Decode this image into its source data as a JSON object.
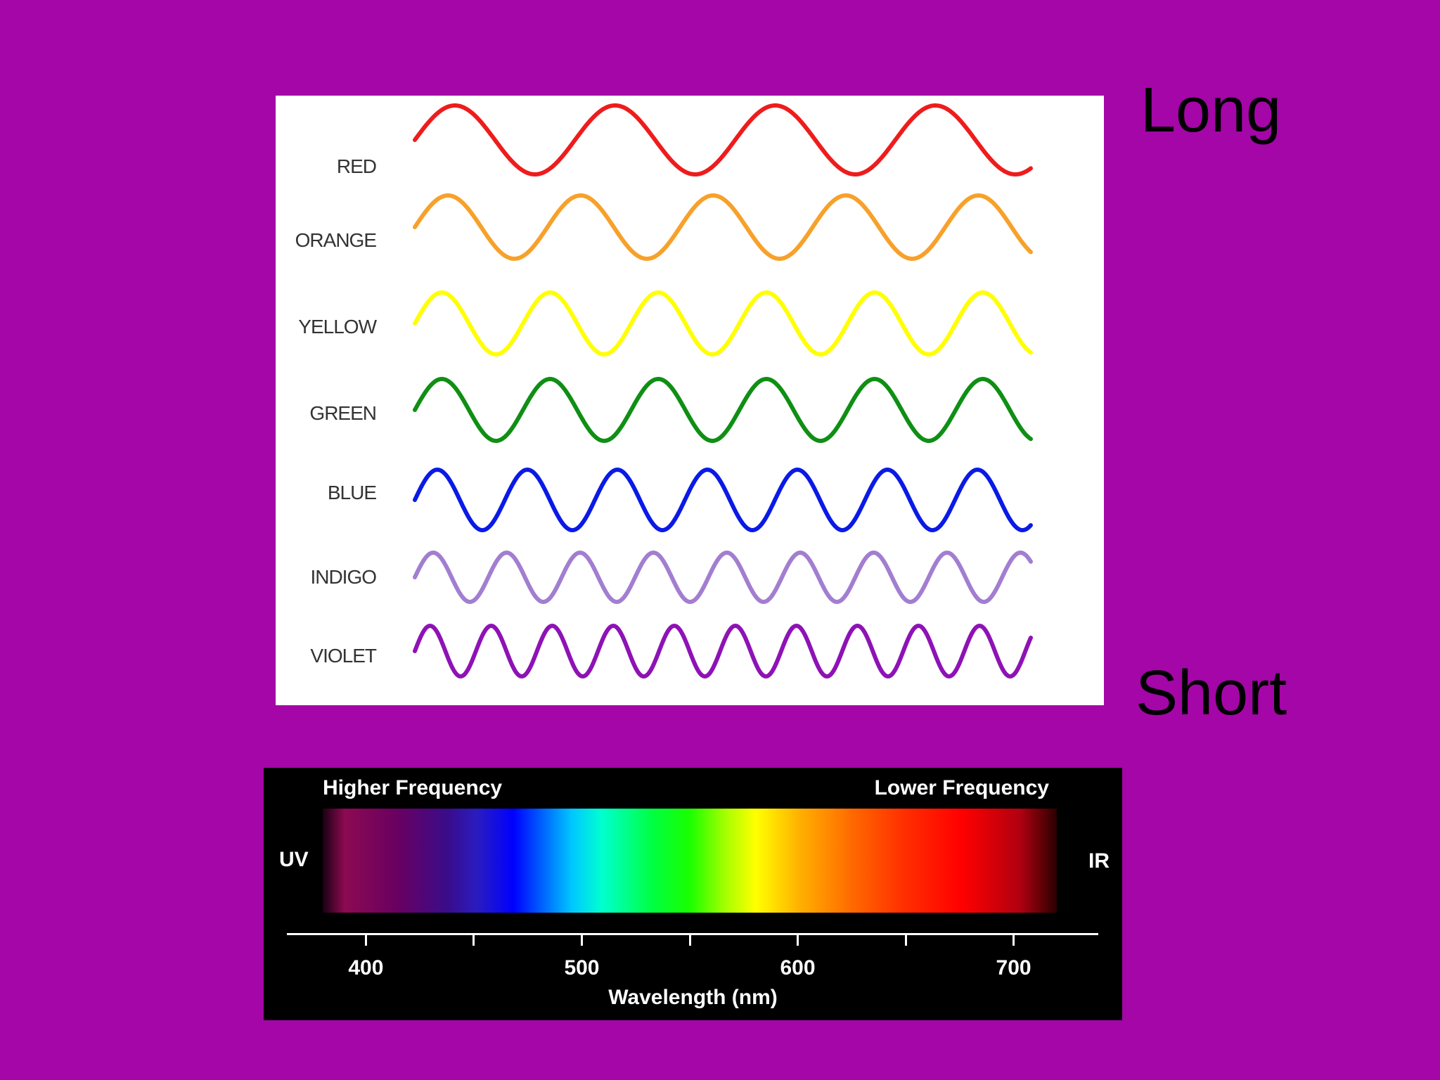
{
  "colors": {
    "background": "#a406a7",
    "panel": "#ffffff",
    "spectrum_panel": "#000000"
  },
  "waves": [
    {
      "label": "RED",
      "color": "#ee1c1c",
      "cycles": 3.85
    },
    {
      "label": "ORANGE",
      "color": "#f7a12a",
      "cycles": 4.65
    },
    {
      "label": "YELLOW",
      "color": "#ffff00",
      "cycles": 5.7
    },
    {
      "label": "GREEN",
      "color": "#0f8f14",
      "cycles": 5.7
    },
    {
      "label": "BLUE",
      "color": "#0a1ae6",
      "cycles": 6.85
    },
    {
      "label": "INDIGO",
      "color": "#a27ed0",
      "cycles": 8.4
    },
    {
      "label": "VIOLET",
      "color": "#8e12b5",
      "cycles": 10.1
    }
  ],
  "side_labels": {
    "long": "Long",
    "short": "Short"
  },
  "spectrum": {
    "higher_frequency": "Higher Frequency",
    "lower_frequency": "Lower Frequency",
    "uv": "UV",
    "ir": "IR",
    "axis_label": "Wavelength (nm)",
    "range_nm": [
      380,
      720
    ],
    "major_ticks": [
      400,
      500,
      600,
      700
    ],
    "minor_ticks": [
      450,
      550,
      650
    ]
  }
}
